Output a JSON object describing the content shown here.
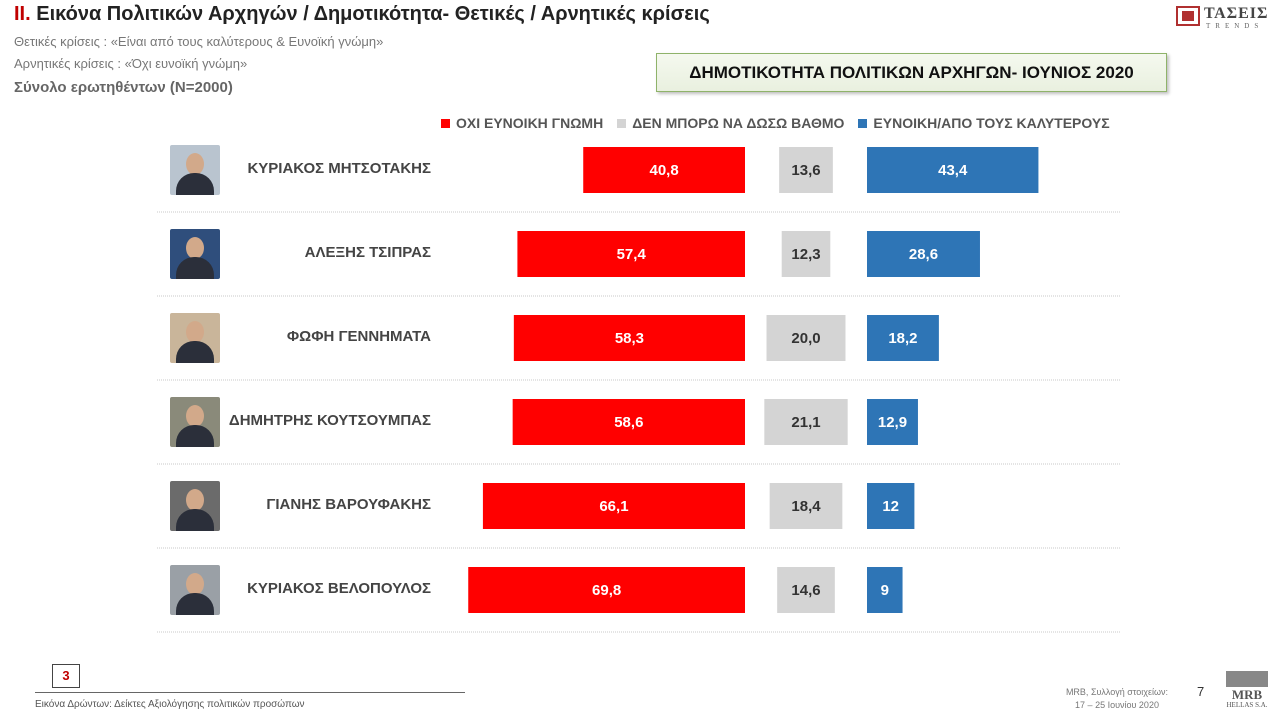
{
  "header": {
    "title_num": "II.",
    "title_rest": "Εικόνα Πολιτικών Αρχηγών  / Δημοτικότητα- Θετικές / Αρνητικές κρίσεις",
    "positive_note": "Θετικές κρίσεις : «Είναι από τους καλύτερους &  Ευνοϊκή γνώμη»",
    "negative_note": "Αρνητικές κρίσεις : «Όχι ευνοϊκή γνώμη»",
    "sample": "Σύνολο ερωτηθέντων (N=2000)"
  },
  "logo_top": {
    "brand": "ΤΑΣΕΙΣ",
    "sub": "TRENDS"
  },
  "banner": "ΔΗΜΟΤΙΚΟΤΗΤΑ ΠΟΛΙΤΙΚΩΝ ΑΡΧΗΓΩΝ- ΙΟΥΝΙΟΣ 2020",
  "colors": {
    "negative": "#ff0000",
    "neutral": "#d4d4d4",
    "positive": "#2e75b6"
  },
  "chart_data": {
    "type": "bar",
    "title": "ΔΗΜΟΤΙΚΟΤΗΤΑ ΠΟΛΙΤΙΚΩΝ ΑΡΧΗΓΩΝ- ΙΟΥΝΙΟΣ 2020",
    "categories": [
      "ΚΥΡΙΑΚΟΣ ΜΗΤΣΟΤΑΚΗΣ",
      "ΑΛΕΞΗΣ ΤΣΙΠΡΑΣ",
      "ΦΩΦΗ ΓΕΝΝΗΜΑΤΑ",
      "ΔΗΜΗΤΡΗΣ ΚΟΥΤΣΟΥΜΠΑΣ",
      "ΓΙΑΝΗΣ ΒΑΡΟΥΦΑΚΗΣ",
      "ΚΥΡΙΑΚΟΣ ΒΕΛΟΠΟΥΛΟΣ"
    ],
    "series": [
      {
        "name": "ΟΧΙ ΕΥΝΟΙΚΗ ΓΝΩΜΗ",
        "values": [
          40.8,
          57.4,
          58.3,
          58.6,
          66.1,
          69.8
        ],
        "labels": [
          "40,8",
          "57,4",
          "58,3",
          "58,6",
          "66,1",
          "69,8"
        ]
      },
      {
        "name": "ΔΕΝ ΜΠΟΡΩ ΝΑ ΔΩΣΩ ΒΑΘΜΟ",
        "values": [
          13.6,
          12.3,
          20.0,
          21.1,
          18.4,
          14.6
        ],
        "labels": [
          "13,6",
          "12,3",
          "20,0",
          "21,1",
          "18,4",
          "14,6"
        ]
      },
      {
        "name": "ΕΥΝΟΙΚΗ/ΑΠΟ ΤΟΥΣ ΚΑΛΥΤΕΡΟΥΣ",
        "values": [
          43.4,
          28.6,
          18.2,
          12.9,
          12,
          9
        ],
        "labels": [
          "43,4",
          "28,6",
          "18,2",
          "12,9",
          "12",
          "9"
        ]
      }
    ],
    "legend": "top",
    "grid": false
  },
  "footer": {
    "page_box": "3",
    "caption": "Εικόνα Δρώντων: Δείκτες Αξιολόγησης πολιτικών προσώπων",
    "source_line1": "MRB, Συλλογή στοιχείων:",
    "source_line2": "17 – 25 Ιουνίου 2020",
    "page_number": "7",
    "mrb_brand": "MRB",
    "mrb_sub": "HELLAS S.A."
  }
}
